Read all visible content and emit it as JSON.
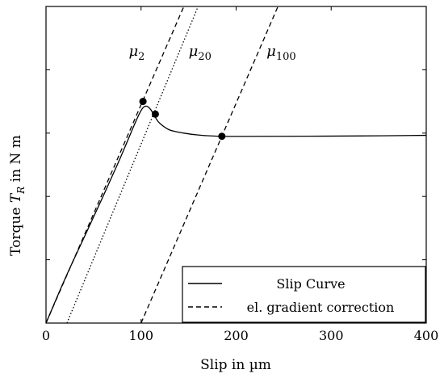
{
  "chart_data": {
    "type": "line",
    "xlabel": "Slip in µm",
    "ylabel_prefix": "Torque ",
    "ylabel_symbol": "T",
    "ylabel_subscript": "R",
    "ylabel_suffix": " in N m",
    "xlim": [
      0,
      400
    ],
    "ylim": [
      0,
      1
    ],
    "x_ticks": [
      0,
      100,
      200,
      300,
      400
    ],
    "y_ticks": [
      0,
      0.2,
      0.4,
      0.6,
      0.8,
      1.0
    ],
    "y_tick_labels_visible": false,
    "grid": false,
    "legend_placement": "bottom-right",
    "legend": [
      {
        "label": "Slip Curve",
        "style": "solid"
      },
      {
        "label": "el. gradient correction",
        "style": "dashed"
      }
    ],
    "series": [
      {
        "name": "Slip Curve",
        "style": "solid",
        "points": [
          [
            0,
            0
          ],
          [
            20,
            0.14
          ],
          [
            40,
            0.27
          ],
          [
            60,
            0.4
          ],
          [
            75,
            0.5
          ],
          [
            85,
            0.57
          ],
          [
            92,
            0.62
          ],
          [
            98,
            0.66
          ],
          [
            102,
            0.68
          ],
          [
            106,
            0.685
          ],
          [
            110,
            0.675
          ],
          [
            113,
            0.66
          ],
          [
            116,
            0.645
          ],
          [
            120,
            0.63
          ],
          [
            130,
            0.61
          ],
          [
            145,
            0.6
          ],
          [
            160,
            0.594
          ],
          [
            185,
            0.59
          ],
          [
            250,
            0.59
          ],
          [
            330,
            0.591
          ],
          [
            400,
            0.593
          ]
        ]
      },
      {
        "label": "μ2",
        "style": "dashed",
        "points": [
          [
            0,
            0
          ],
          [
            145,
            1.0
          ]
        ]
      },
      {
        "label": "μ20",
        "style": "dotted",
        "points": [
          [
            22,
            0
          ],
          [
            160,
            1.0
          ]
        ]
      },
      {
        "label": "μ100",
        "style": "dashed",
        "points": [
          [
            100,
            0
          ],
          [
            244,
            1.0
          ]
        ]
      }
    ],
    "markers": [
      [
        102,
        0.7
      ],
      [
        115,
        0.66
      ],
      [
        185,
        0.59
      ]
    ],
    "annotations": [
      {
        "label": "μ",
        "sub": "2",
        "x": 87,
        "y": 0.845
      },
      {
        "label": "μ",
        "sub": "20",
        "x": 150,
        "y": 0.845
      },
      {
        "label": "μ",
        "sub": "100",
        "x": 232,
        "y": 0.845
      }
    ]
  }
}
